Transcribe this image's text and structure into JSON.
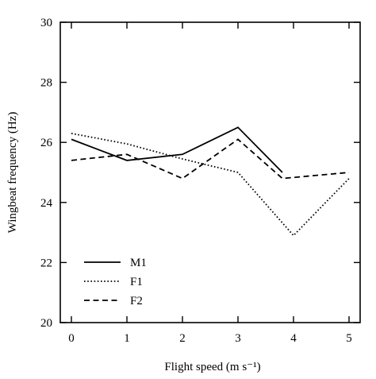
{
  "chart_data": {
    "type": "line",
    "title": "",
    "xlabel": "Flight speed (m s⁻¹)",
    "ylabel": "Wingbeat frequency (Hz)",
    "xlim": [
      -0.2,
      5.2
    ],
    "ylim": [
      20,
      30
    ],
    "xticks": [
      0,
      1,
      2,
      3,
      4,
      5
    ],
    "yticks": [
      20,
      22,
      24,
      26,
      28,
      30
    ],
    "grid": false,
    "legend_position": "lower-left",
    "series": [
      {
        "name": "M1",
        "style": "solid",
        "x": [
          0,
          1,
          2,
          3,
          3.8
        ],
        "y": [
          26.1,
          25.4,
          25.6,
          26.5,
          25.0
        ]
      },
      {
        "name": "F1",
        "style": "dotted",
        "x": [
          0,
          1,
          2,
          3,
          4,
          5
        ],
        "y": [
          26.3,
          25.95,
          25.45,
          25.0,
          22.9,
          24.8
        ]
      },
      {
        "name": "F2",
        "style": "dashed",
        "x": [
          0,
          1,
          2,
          3,
          3.8,
          5
        ],
        "y": [
          25.4,
          25.6,
          24.8,
          26.1,
          24.8,
          25.0
        ]
      }
    ]
  }
}
